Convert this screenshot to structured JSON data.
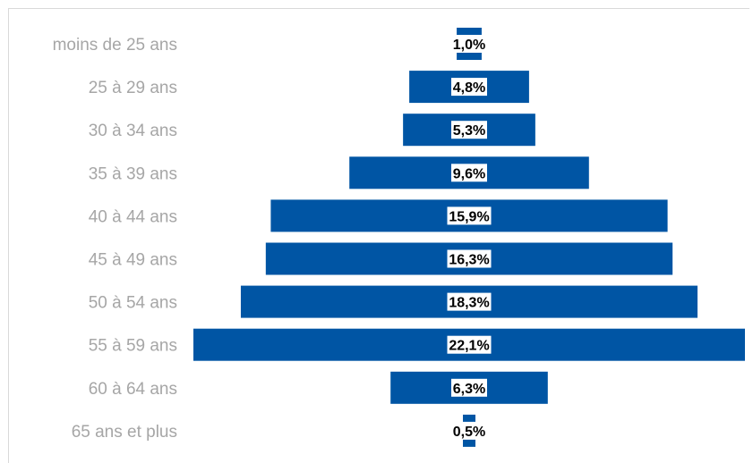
{
  "chart_data": {
    "type": "bar",
    "orientation": "horizontal-centered",
    "categories": [
      "moins de 25 ans",
      "25 à 29 ans",
      "30 à 34 ans",
      "35 à 39 ans",
      "40 à 44 ans",
      "45 à 49 ans",
      "50 à 54 ans",
      "55 à 59 ans",
      "60 à 64 ans",
      "65 ans et plus"
    ],
    "values": [
      1.0,
      4.8,
      5.3,
      9.6,
      15.9,
      16.3,
      18.3,
      22.1,
      6.3,
      0.5
    ],
    "value_labels": [
      "1,0%",
      "4,8%",
      "5,3%",
      "9,6%",
      "15,9%",
      "16,3%",
      "18,3%",
      "22,1%",
      "6,3%",
      "0,5%"
    ],
    "unit": "%",
    "grid": false,
    "legend": "none",
    "colors": {
      "bar": "#0055a4",
      "category_text": "#a6a6a6",
      "value_text": "#000000"
    }
  }
}
